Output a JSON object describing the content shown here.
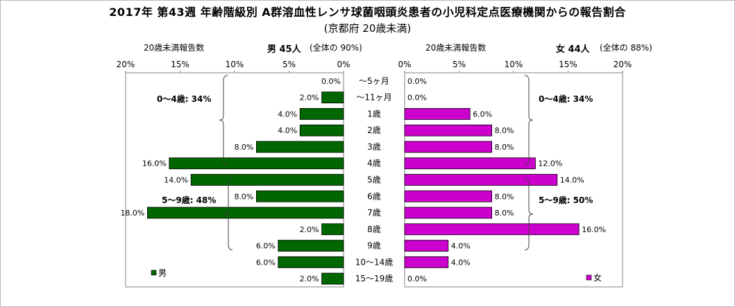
{
  "chart_data": {
    "type": "bar",
    "title": "2017年 第43週 年齢階級別 A群溶血性レンサ球菌咽頭炎患者の小児科定点医療機関からの報告割合",
    "subtitle": "(京都府 20歳未満)",
    "categories": [
      "～5ヶ月",
      "～11ヶ月",
      "1歳",
      "2歳",
      "3歳",
      "4歳",
      "5歳",
      "6歳",
      "7歳",
      "8歳",
      "9歳",
      "10～14歳",
      "15～19歳"
    ],
    "male": {
      "header_label": "20歳未満報告数",
      "header_count": "男  45人",
      "header_share": "(全体の  90%)",
      "legend": "男",
      "color": "#006600",
      "values": [
        0.0,
        2.0,
        4.0,
        4.0,
        8.0,
        16.0,
        14.0,
        8.0,
        18.0,
        2.0,
        6.0,
        6.0,
        2.0
      ],
      "labels": [
        "0.0%",
        "2.0%",
        "4.0%",
        "4.0%",
        "8.0%",
        "16.0%",
        "14.0%",
        "8.0%",
        "18.0%",
        "2.0%",
        "6.0%",
        "6.0%",
        "2.0%"
      ],
      "group_labels": [
        "0～4歳: 34%",
        "5～9歳: 48%"
      ]
    },
    "female": {
      "header_label": "20歳未満報告数",
      "header_count": "女  44人",
      "header_share": "(全体の  88%)",
      "legend": "女",
      "color": "#cc00cc",
      "values": [
        0.0,
        0.0,
        6.0,
        8.0,
        8.0,
        12.0,
        14.0,
        8.0,
        8.0,
        16.0,
        4.0,
        4.0,
        0.0
      ],
      "labels": [
        "0.0%",
        "0.0%",
        "6.0%",
        "8.0%",
        "8.0%",
        "12.0%",
        "14.0%",
        "8.0%",
        "8.0%",
        "16.0%",
        "4.0%",
        "4.0%",
        "0.0%"
      ],
      "group_labels": [
        "0～4歳: 34%",
        "5～9歳: 50%"
      ]
    },
    "x_ticks_male": [
      "20%",
      "15%",
      "10%",
      "5%",
      "0%"
    ],
    "x_ticks_female": [
      "0%",
      "5%",
      "10%",
      "15%",
      "20%"
    ],
    "xlim": [
      0,
      20
    ],
    "grid": true,
    "legend_position": "bottom-inside"
  }
}
